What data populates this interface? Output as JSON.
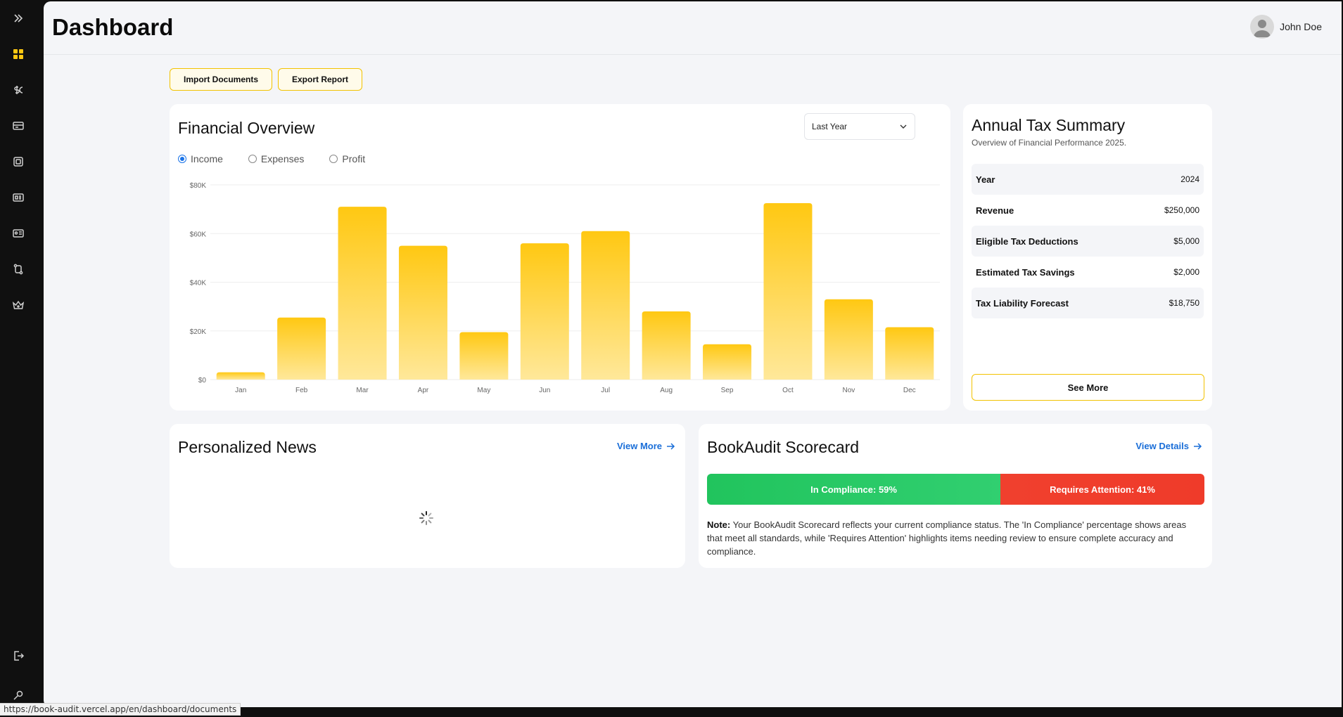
{
  "page": {
    "title": "Dashboard"
  },
  "user": {
    "name": "John Doe"
  },
  "actions": {
    "import_label": "Import Documents",
    "export_label": "Export Report"
  },
  "financial_overview": {
    "title": "Financial Overview",
    "period_selected": "Last Year",
    "radios": [
      {
        "label": "Income",
        "checked": true
      },
      {
        "label": "Expenses",
        "checked": false
      },
      {
        "label": "Profit",
        "checked": false
      }
    ]
  },
  "chart_data": {
    "type": "bar",
    "categories": [
      "Jan",
      "Feb",
      "Mar",
      "Apr",
      "May",
      "Jun",
      "Jul",
      "Aug",
      "Sep",
      "Oct",
      "Nov",
      "Dec"
    ],
    "values": [
      3000,
      25500,
      71000,
      55000,
      19500,
      56000,
      61000,
      28000,
      14500,
      72500,
      33000,
      21500
    ],
    "ylim": [
      0,
      80000
    ],
    "yticks": [
      "$0",
      "$20K",
      "$40K",
      "$60K",
      "$80K"
    ],
    "ytick_values": [
      0,
      20000,
      40000,
      60000,
      80000
    ],
    "grid": true,
    "color": "#ffc812"
  },
  "tax_summary": {
    "title": "Annual Tax Summary",
    "subtitle": "Overview of Financial Performance 2025.",
    "rows": [
      {
        "label": "Year",
        "value": "2024"
      },
      {
        "label": "Revenue",
        "value": "$250,000"
      },
      {
        "label": "Eligible Tax Deductions",
        "value": "$5,000"
      },
      {
        "label": "Estimated Tax Savings",
        "value": "$2,000"
      },
      {
        "label": "Tax Liability Forecast",
        "value": "$18,750"
      }
    ],
    "see_more_label": "See More"
  },
  "news": {
    "title": "Personalized News",
    "link_label": "View More"
  },
  "scorecard": {
    "title": "BookAudit Scorecard",
    "link_label": "View Details",
    "compliance_label": "In Compliance: 59%",
    "compliance_pct": 59,
    "attention_label": "Requires Attention: 41%",
    "attention_pct": 41,
    "note_prefix": "Note:",
    "note_text": "Your BookAudit Scorecard reflects your current compliance status. The 'In Compliance' percentage shows areas that meet all standards, while 'Requires Attention' highlights items needing review to ensure complete accuracy and compliance."
  },
  "status_bar": {
    "url": "https://book-audit.vercel.app/en/dashboard/documents"
  },
  "colors": {
    "accent": "#ffc812",
    "link": "#1a6ed8",
    "success": "#22c55e",
    "danger": "#ef3b2a"
  }
}
